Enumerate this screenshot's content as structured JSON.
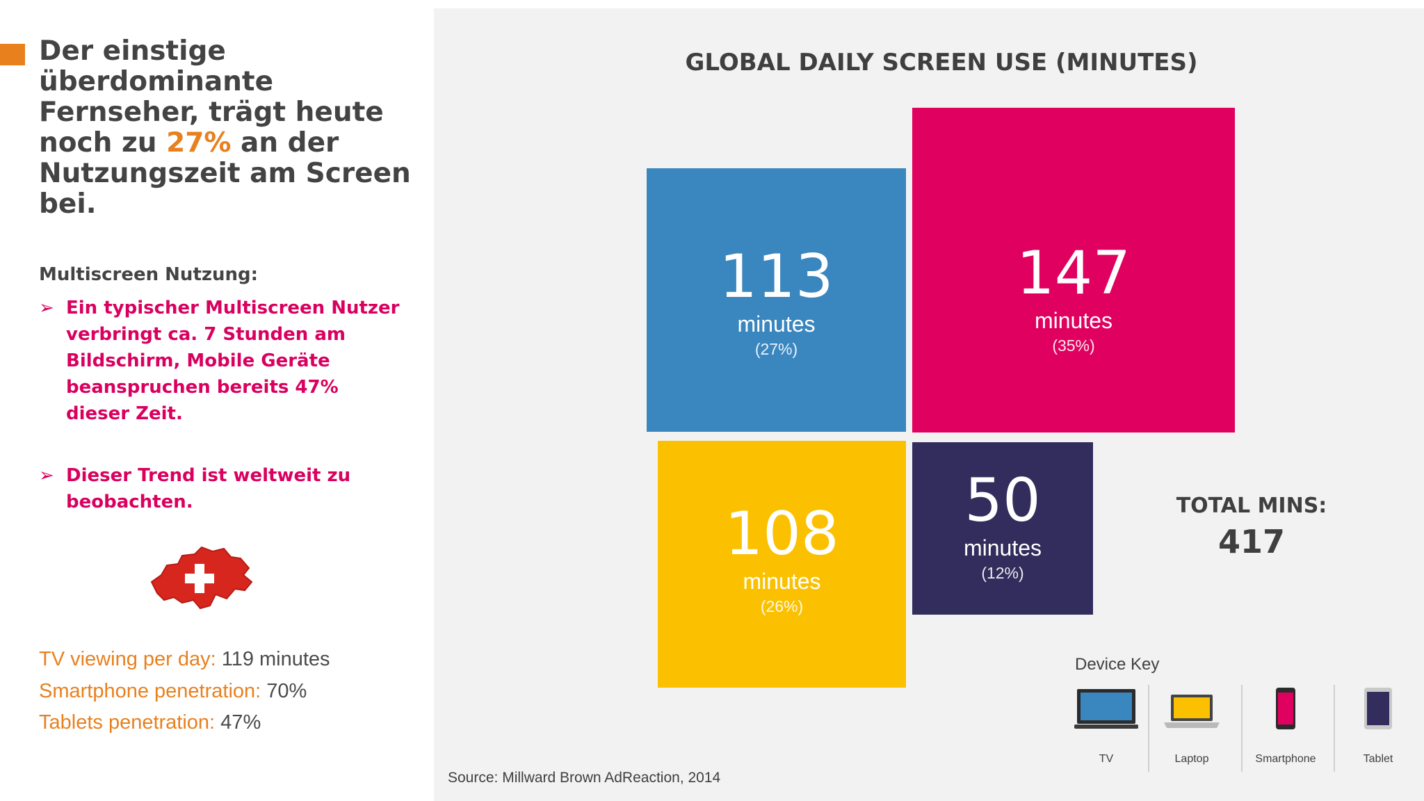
{
  "left": {
    "headline_pre": "Der einstige überdominante Fernseher, trägt heute noch zu ",
    "headline_highlight": "27%",
    "headline_post": " an der Nutzungszeit am Screen bei.",
    "multiscreen_title": "Multiscreen Nutzung:",
    "bullets": [
      "Ein typischer Multiscreen Nutzer verbringt ca. 7 Stunden am Bildschirm, Mobile Geräte beanspruchen bereits 47% dieser Zeit.",
      "Dieser Trend ist weltweit zu beobachten."
    ],
    "bullet_marker": "➢",
    "stats": [
      {
        "label": "TV viewing per day:",
        "value": " 119 minutes"
      },
      {
        "label": "Smartphone penetration:",
        "value": " 70%"
      },
      {
        "label": "Tablets penetration:",
        "value": " 47%"
      }
    ]
  },
  "chart": {
    "title": "GLOBAL DAILY SCREEN USE (MINUTES)",
    "tiles": {
      "tv": {
        "value": "113",
        "unit": "minutes",
        "pct": "(27%)"
      },
      "smartphone": {
        "value": "147",
        "unit": "minutes",
        "pct": "(35%)"
      },
      "laptop": {
        "value": "108",
        "unit": "minutes",
        "pct": "(26%)"
      },
      "tablet": {
        "value": "50",
        "unit": "minutes",
        "pct": "(12%)"
      }
    },
    "total_label": "TOTAL MINS:",
    "total_value": "417",
    "device_key_title": "Device Key",
    "device_key": [
      {
        "label": "TV",
        "icon": "tv-icon",
        "color": "#3a86bf"
      },
      {
        "label": "Laptop",
        "icon": "laptop-icon",
        "color": "#fbc100"
      },
      {
        "label": "Smartphone",
        "icon": "smartphone-icon",
        "color": "#e0005f"
      },
      {
        "label": "Tablet",
        "icon": "tablet-icon",
        "color": "#322d5c"
      }
    ],
    "source": "Source: Millward Brown AdReaction, 2014"
  },
  "colors": {
    "accent_orange": "#e8801e",
    "bullet_magenta": "#d9005f",
    "tv_blue": "#3a86bf",
    "smartphone_pink": "#e0005f",
    "laptop_yellow": "#fbc100",
    "tablet_navy": "#322d5c",
    "swiss_red": "#d7261e"
  }
}
